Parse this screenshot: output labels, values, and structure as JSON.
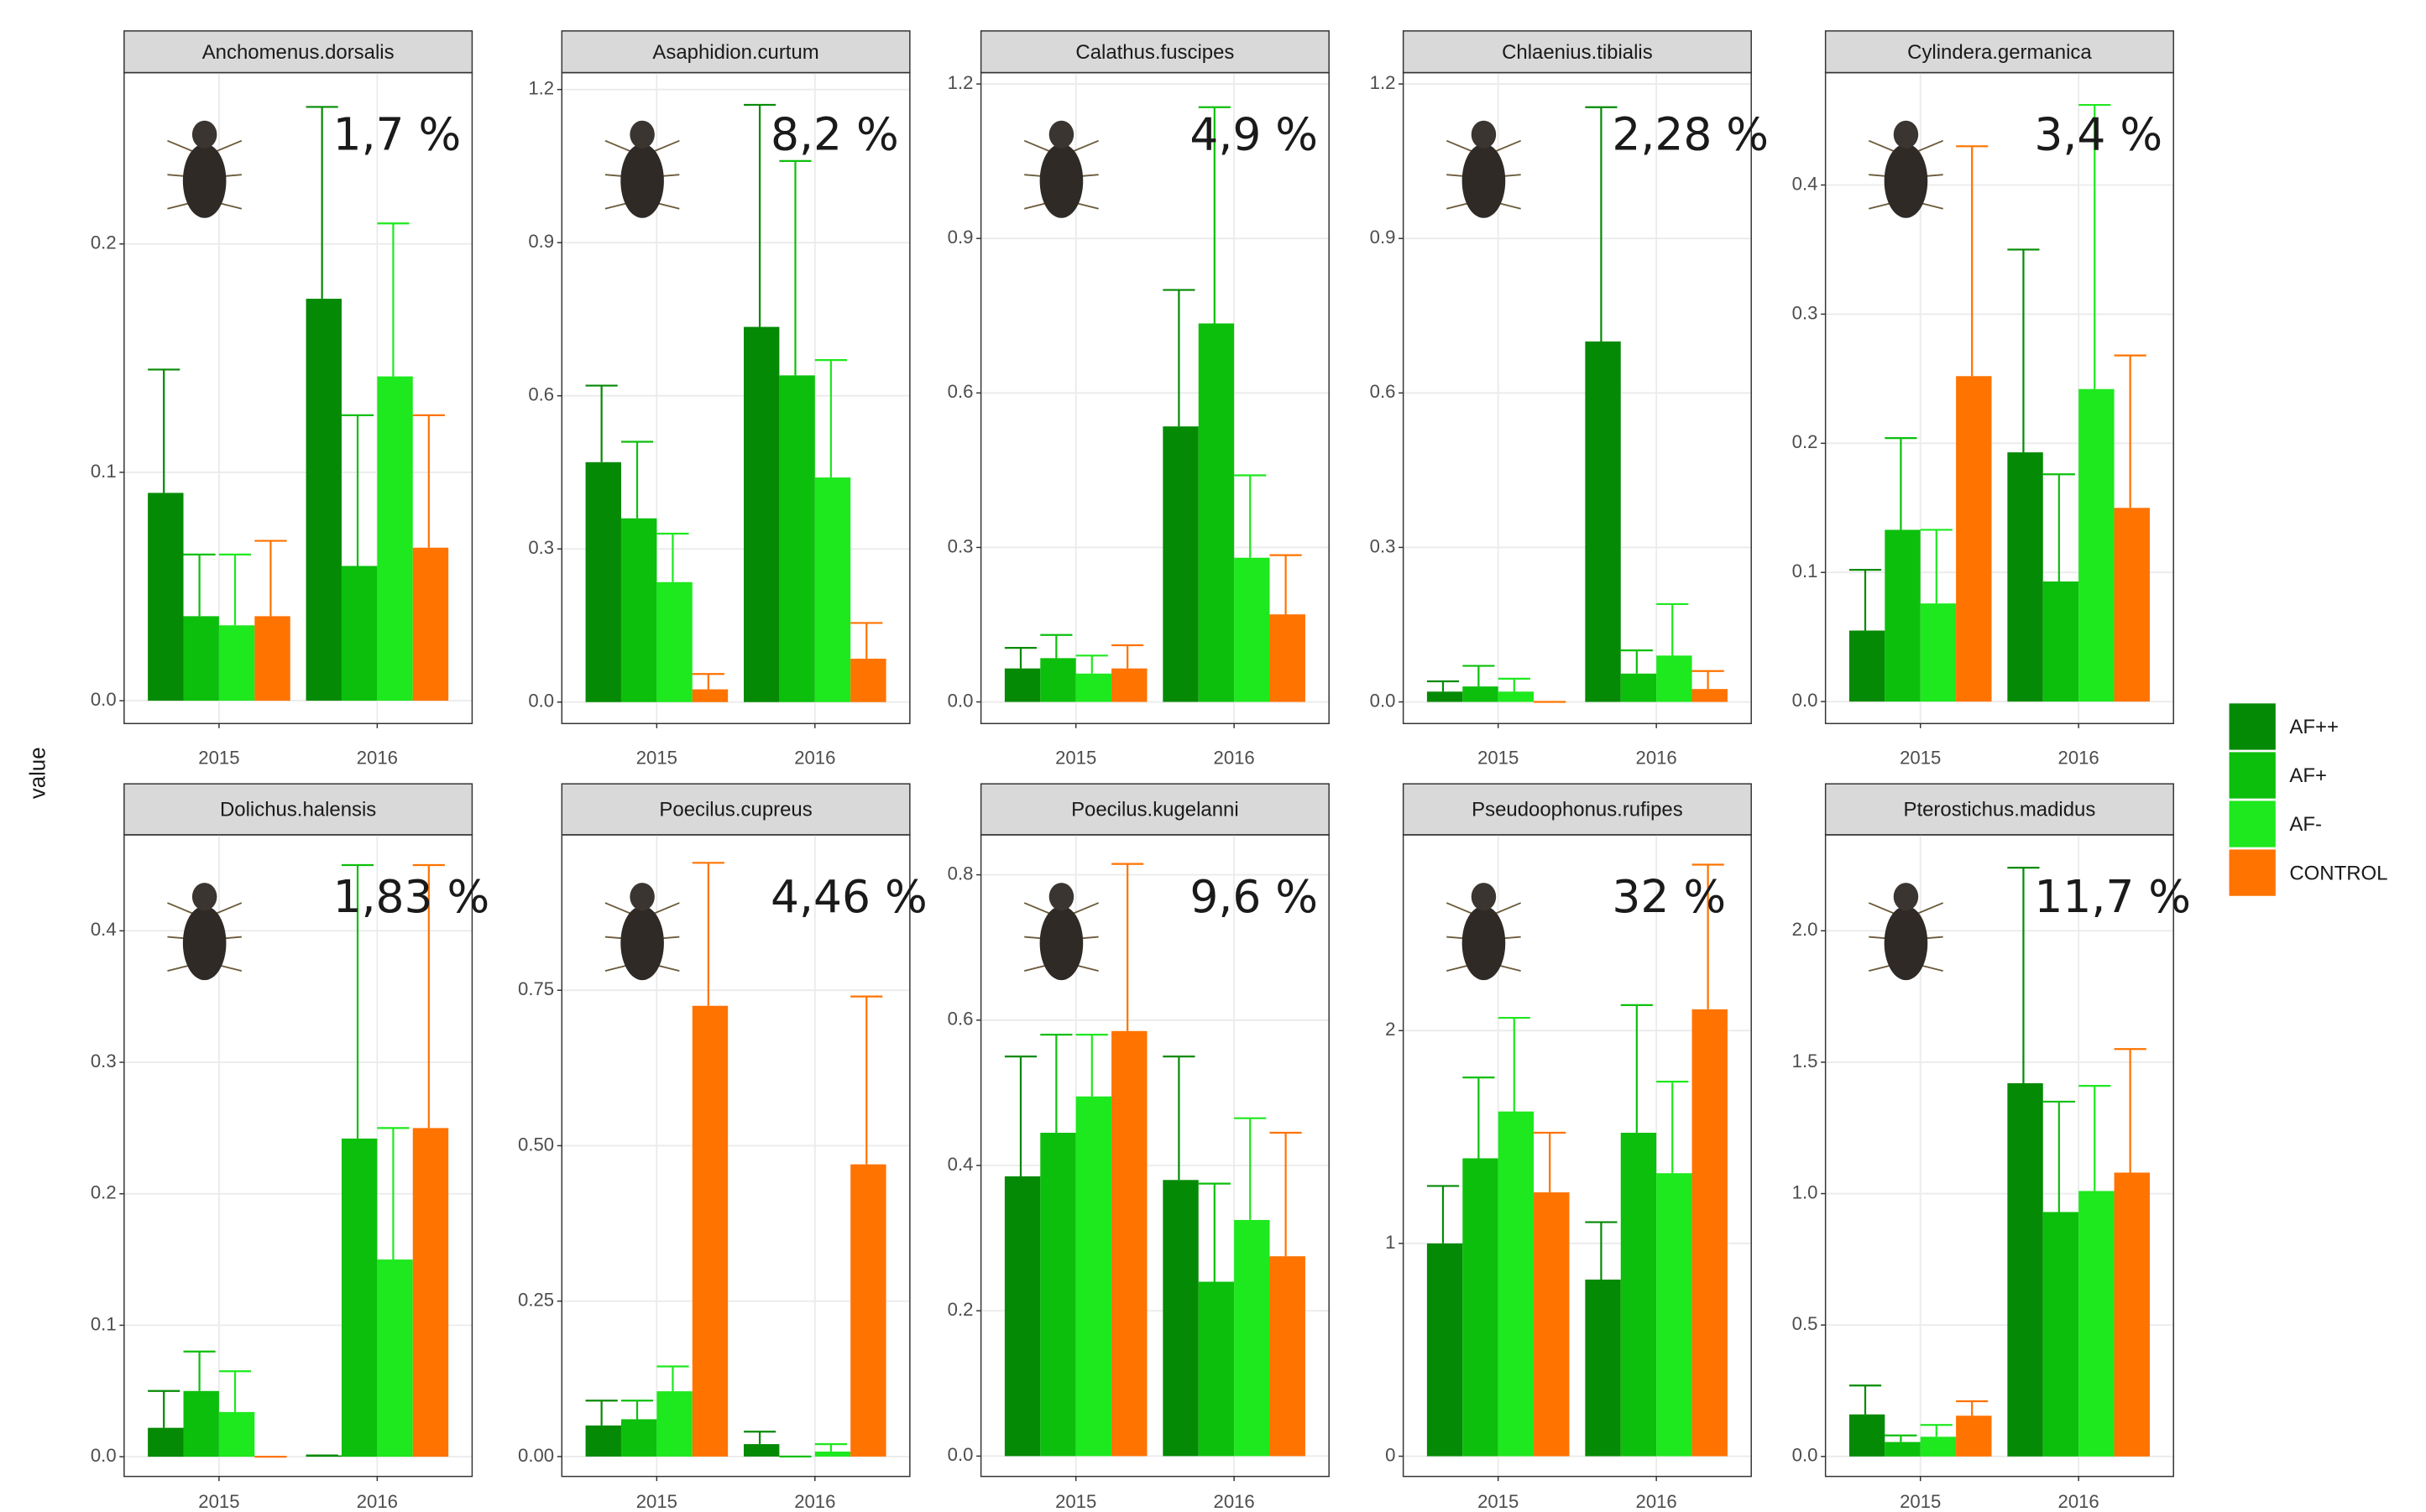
{
  "y_label": "value",
  "legend": [
    {
      "name": "AF++",
      "color": "#058a05"
    },
    {
      "name": "AF+",
      "color": "#0cbf0c"
    },
    {
      "name": "AF-",
      "color": "#1ee81e"
    },
    {
      "name": "CONTROL",
      "color": "#ff7300"
    }
  ],
  "chart_data": [
    {
      "type": "bar",
      "title": "Anchomenus.dorsalis",
      "annotation": "1,7 %",
      "categories": [
        "2015",
        "2016"
      ],
      "ylim": [
        -0.01,
        0.275
      ],
      "yticks": [
        {
          "value": 0,
          "label": "0.0"
        },
        {
          "value": 0.1,
          "label": "0.1"
        },
        {
          "value": 0.2,
          "label": "0.2"
        }
      ],
      "series": [
        {
          "values": [
            0.091,
            0.176
          ],
          "errors": [
            0.145,
            0.26
          ]
        },
        {
          "values": [
            0.037,
            0.059
          ],
          "errors": [
            0.064,
            0.125
          ]
        },
        {
          "values": [
            0.033,
            0.142
          ],
          "errors": [
            0.064,
            0.209
          ]
        },
        {
          "values": [
            0.037,
            0.067
          ],
          "errors": [
            0.07,
            0.125
          ]
        }
      ]
    },
    {
      "type": "bar",
      "title": "Asaphidion.curtum",
      "annotation": "8,2 %",
      "categories": [
        "2015",
        "2016"
      ],
      "ylim": [
        -0.042,
        1.233
      ],
      "yticks": [
        {
          "value": 0,
          "label": "0.0"
        },
        {
          "value": 0.3,
          "label": "0.3"
        },
        {
          "value": 0.6,
          "label": "0.6"
        },
        {
          "value": 0.9,
          "label": "0.9"
        },
        {
          "value": 1.2,
          "label": "1.2"
        }
      ],
      "series": [
        {
          "values": [
            0.47,
            0.735
          ],
          "errors": [
            0.62,
            1.17
          ]
        },
        {
          "values": [
            0.36,
            0.64
          ],
          "errors": [
            0.51,
            1.06
          ]
        },
        {
          "values": [
            0.235,
            0.44
          ],
          "errors": [
            0.33,
            0.67
          ]
        },
        {
          "values": [
            0.025,
            0.085
          ],
          "errors": [
            0.055,
            0.155
          ]
        }
      ]
    },
    {
      "type": "bar",
      "title": "Calathus.fuscipes",
      "annotation": "4,9 %",
      "categories": [
        "2015",
        "2016"
      ],
      "ylim": [
        -0.042,
        1.222
      ],
      "yticks": [
        {
          "value": 0,
          "label": "0.0"
        },
        {
          "value": 0.3,
          "label": "0.3"
        },
        {
          "value": 0.6,
          "label": "0.6"
        },
        {
          "value": 0.9,
          "label": "0.9"
        },
        {
          "value": 1.2,
          "label": "1.2"
        }
      ],
      "series": [
        {
          "values": [
            0.065,
            0.535
          ],
          "errors": [
            0.105,
            0.8
          ]
        },
        {
          "values": [
            0.085,
            0.735
          ],
          "errors": [
            0.13,
            1.155
          ]
        },
        {
          "values": [
            0.055,
            0.28
          ],
          "errors": [
            0.09,
            0.44
          ]
        },
        {
          "values": [
            0.065,
            0.17
          ],
          "errors": [
            0.11,
            0.285
          ]
        }
      ]
    },
    {
      "type": "bar",
      "title": "Chlaenius.tibialis",
      "annotation": "2,28 %",
      "categories": [
        "2015",
        "2016"
      ],
      "ylim": [
        -0.042,
        1.222
      ],
      "yticks": [
        {
          "value": 0,
          "label": "0.0"
        },
        {
          "value": 0.3,
          "label": "0.3"
        },
        {
          "value": 0.6,
          "label": "0.6"
        },
        {
          "value": 0.9,
          "label": "0.9"
        },
        {
          "value": 1.2,
          "label": "1.2"
        }
      ],
      "series": [
        {
          "values": [
            0.02,
            0.7
          ],
          "errors": [
            0.04,
            1.155
          ]
        },
        {
          "values": [
            0.03,
            0.055
          ],
          "errors": [
            0.07,
            0.1
          ]
        },
        {
          "values": [
            0.02,
            0.09
          ],
          "errors": [
            0.045,
            0.19
          ]
        },
        {
          "values": [
            0,
            0.025
          ],
          "errors": [
            0,
            0.06
          ]
        }
      ]
    },
    {
      "type": "bar",
      "title": "Cylindera.germanica",
      "annotation": "3,4 %",
      "categories": [
        "2015",
        "2016"
      ],
      "ylim": [
        -0.017,
        0.487
      ],
      "yticks": [
        {
          "value": 0,
          "label": "0.0"
        },
        {
          "value": 0.1,
          "label": "0.1"
        },
        {
          "value": 0.2,
          "label": "0.2"
        },
        {
          "value": 0.3,
          "label": "0.3"
        },
        {
          "value": 0.4,
          "label": "0.4"
        }
      ],
      "series": [
        {
          "values": [
            0.055,
            0.193
          ],
          "errors": [
            0.102,
            0.35
          ]
        },
        {
          "values": [
            0.133,
            0.093
          ],
          "errors": [
            0.204,
            0.176
          ]
        },
        {
          "values": [
            0.076,
            0.242
          ],
          "errors": [
            0.133,
            0.462
          ]
        },
        {
          "values": [
            0.252,
            0.15
          ],
          "errors": [
            0.43,
            0.268
          ]
        }
      ]
    },
    {
      "type": "bar",
      "title": "Dolichus.halensis",
      "annotation": "1,83 %",
      "categories": [
        "2015",
        "2016"
      ],
      "ylim": [
        -0.015,
        0.473
      ],
      "yticks": [
        {
          "value": 0,
          "label": "0.0"
        },
        {
          "value": 0.1,
          "label": "0.1"
        },
        {
          "value": 0.2,
          "label": "0.2"
        },
        {
          "value": 0.3,
          "label": "0.3"
        },
        {
          "value": 0.4,
          "label": "0.4"
        }
      ],
      "series": [
        {
          "values": [
            0.022,
            0.001
          ],
          "errors": [
            0.05,
            0.001
          ]
        },
        {
          "values": [
            0.05,
            0.242
          ],
          "errors": [
            0.08,
            0.45
          ]
        },
        {
          "values": [
            0.034,
            0.15
          ],
          "errors": [
            0.065,
            0.25
          ]
        },
        {
          "values": [
            0,
            0.25
          ],
          "errors": [
            0,
            0.45
          ]
        }
      ]
    },
    {
      "type": "bar",
      "title": "Poecilus.cupreus",
      "annotation": "4,46 %",
      "categories": [
        "2015",
        "2016"
      ],
      "ylim": [
        -0.032,
        1.0
      ],
      "yticks": [
        {
          "value": 0,
          "label": "0.00"
        },
        {
          "value": 0.25,
          "label": "0.25"
        },
        {
          "value": 0.5,
          "label": "0.50"
        },
        {
          "value": 0.75,
          "label": "0.75"
        }
      ],
      "series": [
        {
          "values": [
            0.05,
            0.02
          ],
          "errors": [
            0.09,
            0.04
          ]
        },
        {
          "values": [
            0.06,
            0
          ],
          "errors": [
            0.09,
            0
          ]
        },
        {
          "values": [
            0.105,
            0.008
          ],
          "errors": [
            0.145,
            0.02
          ]
        },
        {
          "values": [
            0.725,
            0.47
          ],
          "errors": [
            0.955,
            0.74
          ]
        }
      ]
    },
    {
      "type": "bar",
      "title": "Poecilus.kugelanni",
      "annotation": "9,6 %",
      "categories": [
        "2015",
        "2016"
      ],
      "ylim": [
        -0.028,
        0.855
      ],
      "yticks": [
        {
          "value": 0,
          "label": "0.0"
        },
        {
          "value": 0.2,
          "label": "0.2"
        },
        {
          "value": 0.4,
          "label": "0.4"
        },
        {
          "value": 0.6,
          "label": "0.6"
        },
        {
          "value": 0.8,
          "label": "0.8"
        }
      ],
      "series": [
        {
          "values": [
            0.385,
            0.38
          ],
          "errors": [
            0.55,
            0.55
          ]
        },
        {
          "values": [
            0.445,
            0.24
          ],
          "errors": [
            0.58,
            0.375
          ]
        },
        {
          "values": [
            0.495,
            0.325
          ],
          "errors": [
            0.58,
            0.465
          ]
        },
        {
          "values": [
            0.585,
            0.275
          ],
          "errors": [
            0.815,
            0.445
          ]
        }
      ]
    },
    {
      "type": "bar",
      "title": "Pseudoophonus.rufipes",
      "annotation": "32 %",
      "categories": [
        "2015",
        "2016"
      ],
      "ylim": [
        -0.095,
        2.92
      ],
      "yticks": [
        0,
        1,
        2
      ],
      "series": [
        {
          "values": [
            1.0,
            0.83
          ],
          "errors": [
            1.27,
            1.1
          ]
        },
        {
          "values": [
            1.4,
            1.52
          ],
          "errors": [
            1.78,
            2.12
          ]
        },
        {
          "values": [
            1.62,
            1.33
          ],
          "errors": [
            2.06,
            1.76
          ]
        },
        {
          "values": [
            1.24,
            2.1
          ],
          "errors": [
            1.52,
            2.78
          ]
        }
      ]
    },
    {
      "type": "bar",
      "title": "Pterostichus.madidus",
      "annotation": "11,7 %",
      "categories": [
        "2015",
        "2016"
      ],
      "ylim": [
        -0.076,
        2.365
      ],
      "yticks": [
        {
          "value": 0,
          "label": "0.0"
        },
        {
          "value": 0.5,
          "label": "0.5"
        },
        {
          "value": 1.0,
          "label": "1.0"
        },
        {
          "value": 1.5,
          "label": "1.5"
        },
        {
          "value": 2.0,
          "label": "2.0"
        }
      ],
      "series": [
        {
          "values": [
            0.16,
            1.42
          ],
          "errors": [
            0.27,
            2.24
          ]
        },
        {
          "values": [
            0.055,
            0.93
          ],
          "errors": [
            0.08,
            1.35
          ]
        },
        {
          "values": [
            0.075,
            1.01
          ],
          "errors": [
            0.12,
            1.41
          ]
        },
        {
          "values": [
            0.155,
            1.08
          ],
          "errors": [
            0.21,
            1.55
          ]
        }
      ]
    }
  ]
}
